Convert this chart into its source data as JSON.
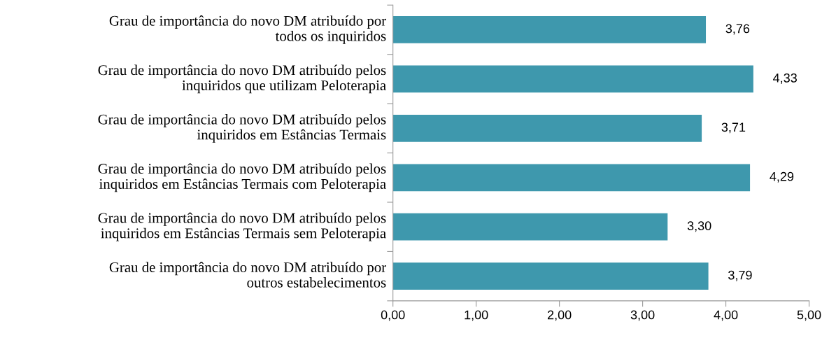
{
  "chart_data": {
    "type": "bar",
    "orientation": "horizontal",
    "categories": [
      "Grau de importância do novo DM atribuído por\ntodos os inquiridos",
      "Grau de importância do novo DM atribuído pelos\ninquiridos que utilizam Peloterapia",
      "Grau de importância do novo DM atribuído pelos\ninquiridos em Estâncias Termais",
      "Grau de importância do novo DM atribuído pelos\ninquiridos em Estâncias Termais com Peloterapia",
      "Grau de importância do novo DM atribuído pelos\ninquiridos em Estâncias Termais sem Peloterapia",
      "Grau de importância do novo DM atribuído por\noutros estabelecimentos"
    ],
    "values": [
      3.76,
      4.33,
      3.71,
      4.29,
      3.3,
      3.79
    ],
    "value_labels": [
      "3,76",
      "4,33",
      "3,71",
      "4,29",
      "3,30",
      "3,79"
    ],
    "color": "#3e98ad",
    "xlim": [
      0,
      5
    ],
    "xticks": [
      {
        "value": 0,
        "label": "0,00"
      },
      {
        "value": 1,
        "label": "1,00"
      },
      {
        "value": 2,
        "label": "2,00"
      },
      {
        "value": 3,
        "label": "3,00"
      },
      {
        "value": 4,
        "label": "4,00"
      },
      {
        "value": 5,
        "label": "5,00"
      }
    ],
    "grid": false,
    "legend": false
  }
}
